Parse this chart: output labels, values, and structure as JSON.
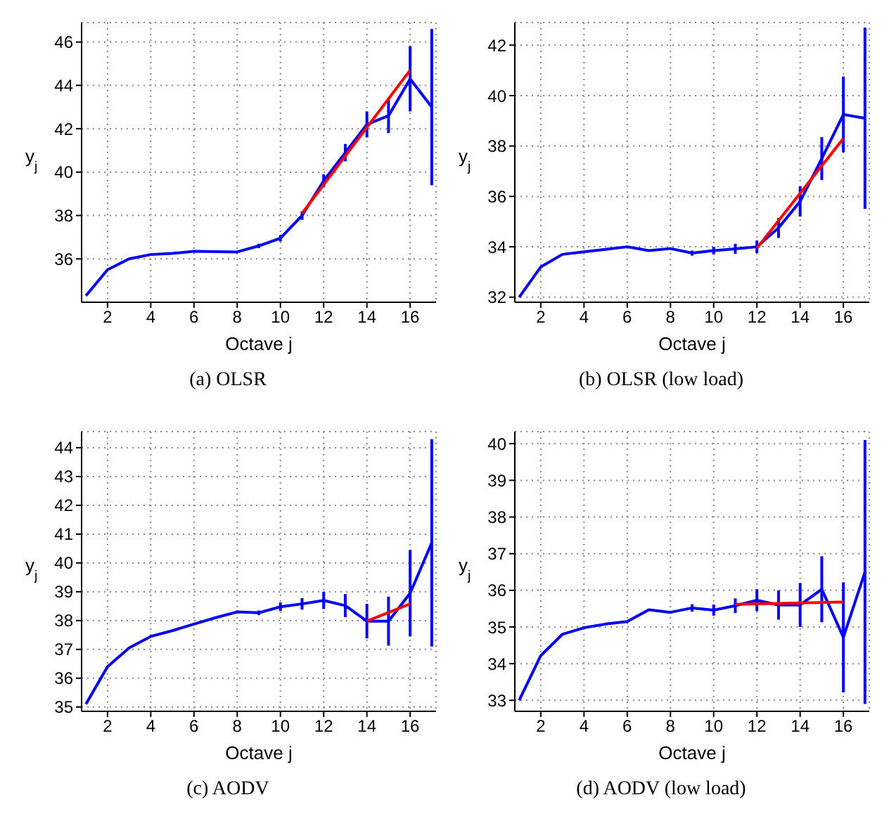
{
  "chart_data": [
    {
      "type": "line",
      "title": "(a)  OLSR",
      "xlabel": "Octave j",
      "ylabel": "y$_{j}$",
      "x": [
        1,
        2,
        3,
        4,
        5,
        6,
        7,
        8,
        9,
        10,
        11,
        12,
        13,
        14,
        15,
        16,
        17
      ],
      "xlim": [
        0.8,
        17.2
      ],
      "xticks": [
        2,
        4,
        6,
        8,
        10,
        12,
        14,
        16
      ],
      "ylim": [
        34,
        46.9
      ],
      "yticks": [
        36,
        38,
        40,
        42,
        44,
        46
      ],
      "grid": true,
      "marker": "none",
      "line_style": "solid",
      "series": [
        {
          "color": "#0000ff",
          "values": [
            34.3,
            35.5,
            36.0,
            36.2,
            36.25,
            36.35,
            36.33,
            36.32,
            36.6,
            36.95,
            38.0,
            39.6,
            40.9,
            42.2,
            42.6,
            44.3,
            43.0
          ],
          "errors": [
            null,
            null,
            null,
            null,
            null,
            null,
            null,
            null,
            0.1,
            0.15,
            0.2,
            0.3,
            0.4,
            0.6,
            0.8,
            1.5,
            3.6
          ]
        },
        {
          "type": "line",
          "color": "#ff0000",
          "x": [
            11,
            16
          ],
          "values": [
            38.1,
            44.7
          ]
        }
      ]
    },
    {
      "type": "line",
      "title": "(b)  OLSR (low load)",
      "xlabel": "Octave j",
      "ylabel": "y$_{j}$",
      "x": [
        1,
        2,
        3,
        4,
        5,
        6,
        7,
        8,
        9,
        10,
        11,
        12,
        13,
        14,
        15,
        16,
        17
      ],
      "xlim": [
        0.8,
        17.2
      ],
      "xticks": [
        2,
        4,
        6,
        8,
        10,
        12,
        14,
        16
      ],
      "ylim": [
        31.8,
        42.9
      ],
      "yticks": [
        32,
        34,
        36,
        38,
        40,
        42
      ],
      "grid": true,
      "marker": "none",
      "line_style": "solid",
      "series": [
        {
          "color": "#0000ff",
          "values": [
            32.0,
            33.2,
            33.7,
            33.8,
            33.9,
            34.0,
            33.85,
            33.93,
            33.75,
            33.85,
            33.92,
            34.0,
            34.75,
            35.8,
            37.5,
            39.25,
            39.1
          ],
          "errors": [
            null,
            null,
            null,
            null,
            null,
            null,
            null,
            null,
            0.1,
            0.15,
            0.2,
            0.25,
            0.4,
            0.6,
            0.85,
            1.5,
            3.6
          ]
        },
        {
          "type": "line",
          "color": "#ff0000",
          "x": [
            12,
            16
          ],
          "values": [
            33.95,
            38.3
          ]
        }
      ]
    },
    {
      "type": "line",
      "title": "(c)  AODV",
      "xlabel": "Octave j",
      "ylabel": "y$_{j}$",
      "x": [
        1,
        2,
        3,
        4,
        5,
        6,
        7,
        8,
        9,
        10,
        11,
        12,
        13,
        14,
        15,
        16,
        17
      ],
      "xlim": [
        0.8,
        17.2
      ],
      "xticks": [
        2,
        4,
        6,
        8,
        10,
        12,
        14,
        16
      ],
      "ylim": [
        34.85,
        44.56
      ],
      "yticks": [
        35,
        36,
        37,
        38,
        39,
        40,
        41,
        42,
        43,
        44
      ],
      "grid": true,
      "marker": "none",
      "line_style": "solid",
      "series": [
        {
          "color": "#0000ff",
          "values": [
            35.1,
            36.4,
            37.05,
            37.45,
            37.65,
            37.88,
            38.1,
            38.3,
            38.27,
            38.48,
            38.58,
            38.7,
            38.52,
            37.98,
            37.98,
            38.95,
            40.7
          ],
          "errors": [
            null,
            null,
            null,
            null,
            null,
            null,
            null,
            0.05,
            0.08,
            0.15,
            0.2,
            0.3,
            0.4,
            0.6,
            0.85,
            1.5,
            3.6
          ]
        },
        {
          "type": "line",
          "color": "#ff0000",
          "x": [
            14,
            16
          ],
          "values": [
            37.98,
            38.58
          ]
        }
      ]
    },
    {
      "type": "line",
      "title": "(d)  AODV (low load)",
      "xlabel": "Octave j",
      "ylabel": "y$_{j}$",
      "x": [
        1,
        2,
        3,
        4,
        5,
        6,
        7,
        8,
        9,
        10,
        11,
        12,
        13,
        14,
        15,
        16,
        17
      ],
      "xlim": [
        0.8,
        17.2
      ],
      "xticks": [
        2,
        4,
        6,
        8,
        10,
        12,
        14,
        16
      ],
      "ylim": [
        32.7,
        40.33
      ],
      "yticks": [
        33,
        34,
        35,
        36,
        37,
        38,
        39,
        40
      ],
      "grid": true,
      "marker": "none",
      "line_style": "solid",
      "series": [
        {
          "color": "#0000ff",
          "values": [
            33.0,
            34.22,
            34.8,
            34.98,
            35.08,
            35.15,
            35.47,
            35.4,
            35.52,
            35.46,
            35.58,
            35.73,
            35.6,
            35.6,
            36.03,
            34.72,
            36.5
          ],
          "errors": [
            null,
            null,
            null,
            null,
            null,
            null,
            null,
            null,
            0.1,
            0.15,
            0.2,
            0.3,
            0.4,
            0.6,
            0.9,
            1.5,
            3.6
          ]
        },
        {
          "type": "line",
          "color": "#ff0000",
          "x": [
            11,
            16
          ],
          "values": [
            35.62,
            35.68
          ]
        }
      ]
    }
  ]
}
